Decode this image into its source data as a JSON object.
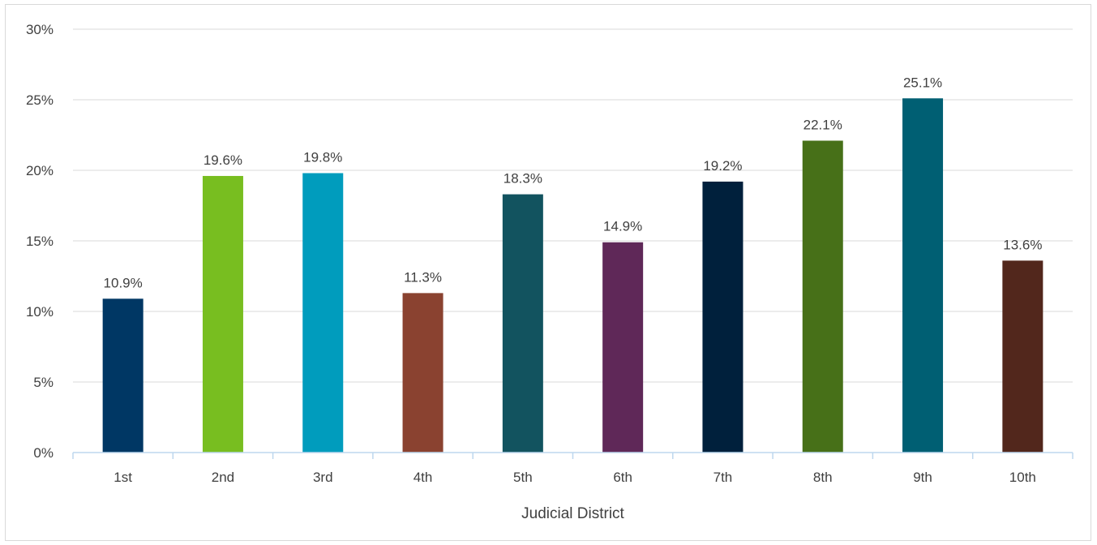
{
  "chart_data": {
    "type": "bar",
    "title": "",
    "xlabel": "Judicial District",
    "ylabel": "",
    "ylim": [
      0,
      30
    ],
    "yticks": [
      0,
      5,
      10,
      15,
      20,
      25,
      30
    ],
    "ytick_labels": [
      "0%",
      "5%",
      "10%",
      "15%",
      "20%",
      "25%",
      "30%"
    ],
    "grid": true,
    "legend": "none",
    "categories": [
      "1st",
      "2nd",
      "3rd",
      "4th",
      "5th",
      "6th",
      "7th",
      "8th",
      "9th",
      "10th"
    ],
    "values": [
      10.9,
      19.6,
      19.8,
      11.3,
      18.3,
      14.9,
      19.2,
      22.1,
      25.1,
      13.6
    ],
    "data_labels": [
      "10.9%",
      "19.6%",
      "19.8%",
      "11.3%",
      "18.3%",
      "14.9%",
      "19.2%",
      "22.1%",
      "25.1%",
      "13.6%"
    ],
    "colors": [
      "#003764",
      "#78be20",
      "#009cbd",
      "#8a4230",
      "#12535f",
      "#5f2858",
      "#00203c",
      "#477018",
      "#005f73",
      "#52271c"
    ]
  }
}
